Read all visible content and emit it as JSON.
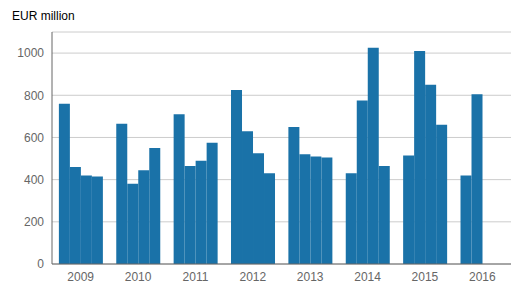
{
  "chart_data": {
    "type": "bar",
    "y_label": "EUR million",
    "categories": [
      "2009",
      "2010",
      "2011",
      "2012",
      "2013",
      "2014",
      "2015",
      "2016"
    ],
    "series": [
      {
        "values": [
          760,
          665,
          710,
          825,
          650,
          430,
          515,
          420
        ]
      },
      {
        "values": [
          460,
          380,
          465,
          630,
          520,
          775,
          1010,
          805
        ]
      },
      {
        "values": [
          420,
          445,
          490,
          525,
          510,
          1025,
          850,
          null
        ]
      },
      {
        "values": [
          415,
          550,
          575,
          430,
          505,
          465,
          660,
          null
        ]
      }
    ],
    "color": "#1a72a8",
    "ylim": [
      0,
      1100
    ],
    "yticks": [
      0,
      200,
      400,
      600,
      800,
      1000
    ],
    "grid": true
  }
}
